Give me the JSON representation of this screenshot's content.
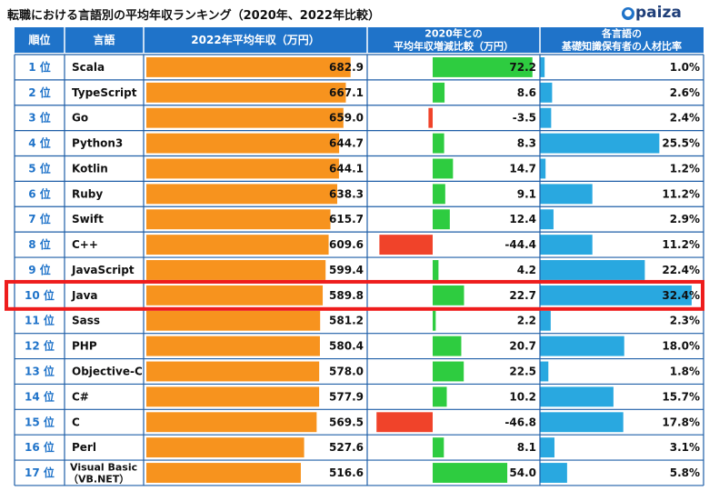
{
  "title": "転職における言語別の平均年収ランキング（2020年、2022年比較）",
  "logo": {
    "mark": "●",
    "text": "paiza"
  },
  "colors": {
    "header_bg": "#1f73c9",
    "header_text": "#ffffff",
    "row_border": "#1f5fa8",
    "salary_bar": "#f7931e",
    "change_positive": "#2ecc40",
    "change_negative": "#f0432a",
    "ratio_bar": "#29a8e0",
    "highlight": "#ee1c1c"
  },
  "chart_data": {
    "type": "table",
    "title": "転職における言語別の平均年収ランキング（2020年、2022年比較）",
    "columns": {
      "rank": "順位",
      "language": "言語",
      "salary": "2022年平均年収（万円）",
      "change_line1": "2020年との",
      "change_line2": "平均年収増減比較（万円）",
      "ratio_line1": "各言語の",
      "ratio_line2": "基礎知識保有者の人材比率"
    },
    "rank_suffix": "位",
    "salary_range": [
      0,
      690
    ],
    "change_range": [
      -50,
      75
    ],
    "ratio_range": [
      0,
      33
    ],
    "highlight_rank": 10,
    "rows": [
      {
        "rank": 1,
        "language": "Scala",
        "salary": 682.9,
        "salary_label": "682.9",
        "change": 72.2,
        "change_label": "72.2",
        "ratio": 1.0,
        "ratio_label": "1.0%"
      },
      {
        "rank": 2,
        "language": "TypeScript",
        "salary": 667.1,
        "salary_label": "667.1",
        "change": 8.6,
        "change_label": "8.6",
        "ratio": 2.6,
        "ratio_label": "2.6%"
      },
      {
        "rank": 3,
        "language": "Go",
        "salary": 659.0,
        "salary_label": "659.0",
        "change": -3.5,
        "change_label": "-3.5",
        "ratio": 2.4,
        "ratio_label": "2.4%"
      },
      {
        "rank": 4,
        "language": "Python3",
        "salary": 644.7,
        "salary_label": "644.7",
        "change": 8.3,
        "change_label": "8.3",
        "ratio": 25.5,
        "ratio_label": "25.5%"
      },
      {
        "rank": 5,
        "language": "Kotlin",
        "salary": 644.1,
        "salary_label": "644.1",
        "change": 14.7,
        "change_label": "14.7",
        "ratio": 1.2,
        "ratio_label": "1.2%"
      },
      {
        "rank": 6,
        "language": "Ruby",
        "salary": 638.3,
        "salary_label": "638.3",
        "change": 9.1,
        "change_label": "9.1",
        "ratio": 11.2,
        "ratio_label": "11.2%"
      },
      {
        "rank": 7,
        "language": "Swift",
        "salary": 615.7,
        "salary_label": "615.7",
        "change": 12.4,
        "change_label": "12.4",
        "ratio": 2.9,
        "ratio_label": "2.9%"
      },
      {
        "rank": 8,
        "language": "C++",
        "salary": 609.6,
        "salary_label": "609.6",
        "change": -44.4,
        "change_label": "-44.4",
        "ratio": 11.2,
        "ratio_label": "11.2%"
      },
      {
        "rank": 9,
        "language": "JavaScript",
        "salary": 599.4,
        "salary_label": "599.4",
        "change": 4.2,
        "change_label": "4.2",
        "ratio": 22.4,
        "ratio_label": "22.4%"
      },
      {
        "rank": 10,
        "language": "Java",
        "salary": 589.8,
        "salary_label": "589.8",
        "change": 22.7,
        "change_label": "22.7",
        "ratio": 32.4,
        "ratio_label": "32.4%"
      },
      {
        "rank": 11,
        "language": "Sass",
        "salary": 581.2,
        "salary_label": "581.2",
        "change": 2.2,
        "change_label": "2.2",
        "ratio": 2.3,
        "ratio_label": "2.3%"
      },
      {
        "rank": 12,
        "language": "PHP",
        "salary": 580.4,
        "salary_label": "580.4",
        "change": 20.7,
        "change_label": "20.7",
        "ratio": 18.0,
        "ratio_label": "18.0%"
      },
      {
        "rank": 13,
        "language": "Objective-C",
        "salary": 578.0,
        "salary_label": "578.0",
        "change": 22.5,
        "change_label": "22.5",
        "ratio": 1.8,
        "ratio_label": "1.8%"
      },
      {
        "rank": 14,
        "language": "C#",
        "salary": 577.9,
        "salary_label": "577.9",
        "change": 10.2,
        "change_label": "10.2",
        "ratio": 15.7,
        "ratio_label": "15.7%"
      },
      {
        "rank": 15,
        "language": "C",
        "salary": 569.5,
        "salary_label": "569.5",
        "change": -46.8,
        "change_label": "-46.8",
        "ratio": 17.8,
        "ratio_label": "17.8%"
      },
      {
        "rank": 16,
        "language": "Perl",
        "salary": 527.6,
        "salary_label": "527.6",
        "change": 8.1,
        "change_label": "8.1",
        "ratio": 3.1,
        "ratio_label": "3.1%"
      },
      {
        "rank": 17,
        "language": "Visual Basic\n（VB.NET）",
        "salary": 516.6,
        "salary_label": "516.6",
        "change": 54.0,
        "change_label": "54.0",
        "ratio": 5.8,
        "ratio_label": "5.8%"
      }
    ]
  }
}
